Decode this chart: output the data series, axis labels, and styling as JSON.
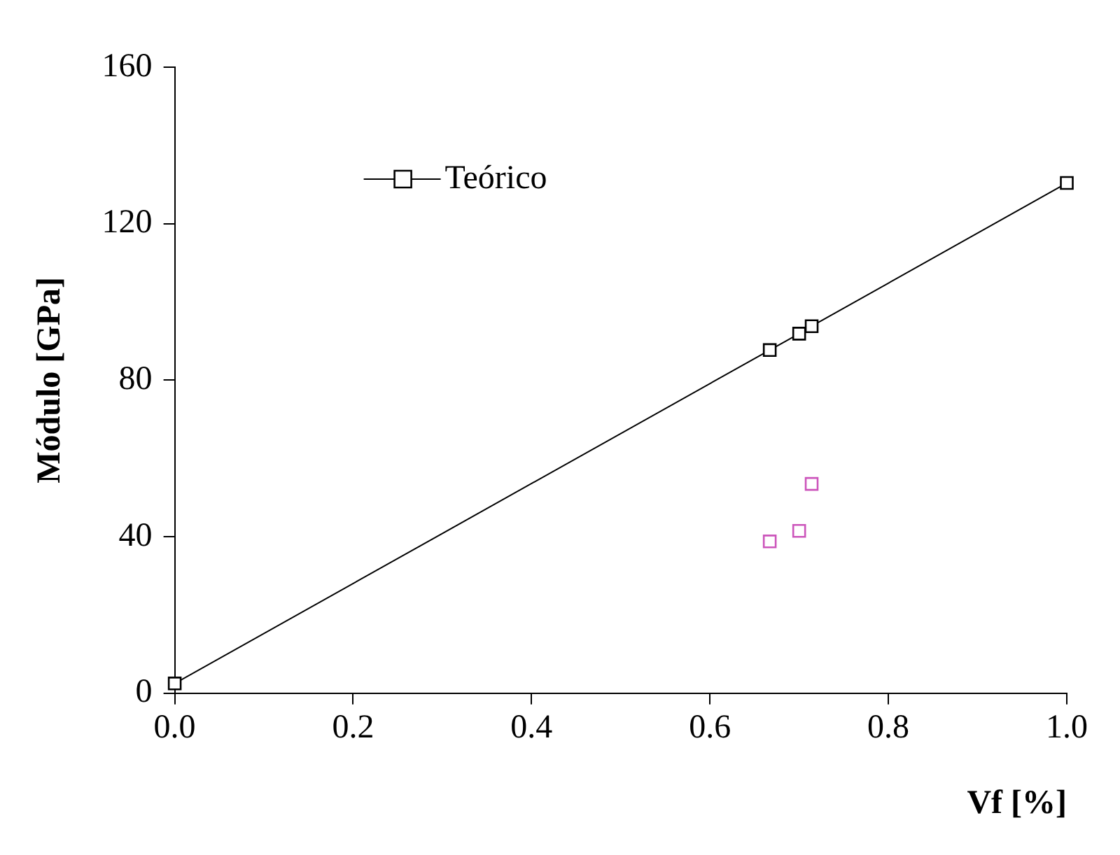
{
  "chart_data": {
    "type": "scatter",
    "xlabel": "Vf [%]",
    "ylabel": "Módulo [GPa]",
    "xlim": [
      0,
      1
    ],
    "xticks": [
      {
        "value": 0,
        "label": "0.0"
      },
      0.2,
      0.4,
      0.6,
      0.8,
      {
        "value": 1,
        "label": "1.0"
      }
    ],
    "ylim": [
      0,
      160
    ],
    "yticks": [
      0,
      40,
      80,
      120,
      160
    ],
    "grid": false,
    "legend": "top left",
    "marker": "square",
    "series": [
      {
        "name": "Teórico",
        "type": "line",
        "color": "#000000",
        "line_style": "solid",
        "x": [
          0,
          0.667,
          0.7,
          0.714,
          1
        ],
        "values": [
          2.5,
          87.7,
          91.9,
          93.8,
          130.4
        ]
      },
      {
        "type": "scatter",
        "color": "#cc55bb",
        "x": [
          0.667,
          0.7,
          0.714
        ],
        "values": [
          38.8,
          41.5,
          53.5
        ]
      }
    ]
  }
}
